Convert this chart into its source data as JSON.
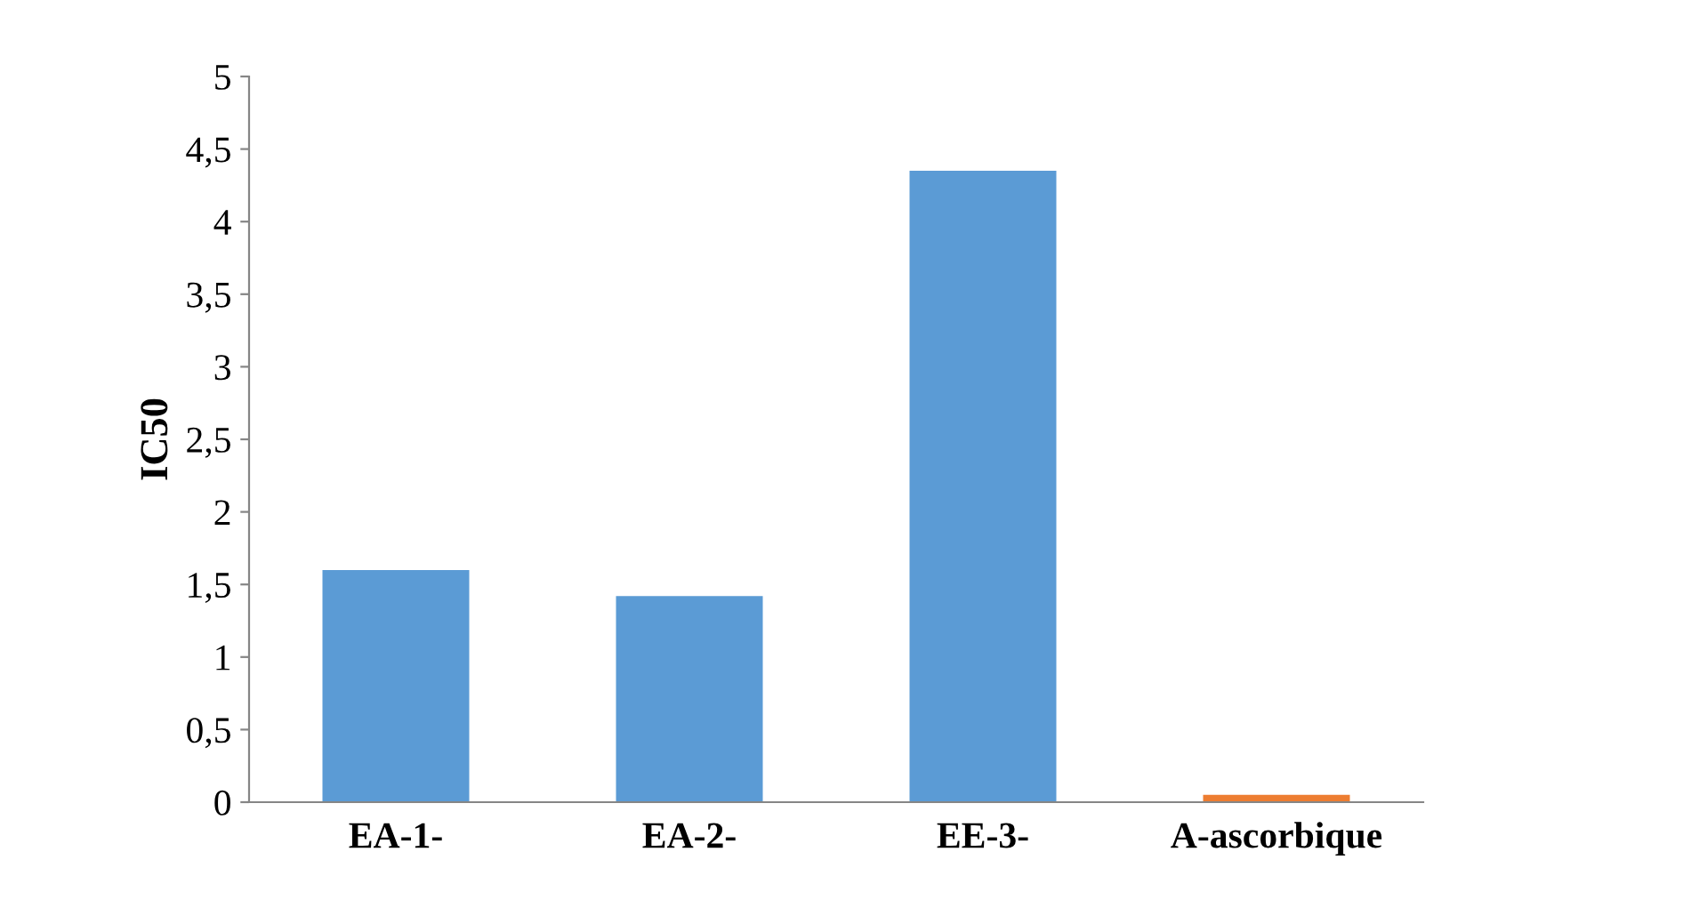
{
  "chart_data": {
    "type": "bar",
    "ylabel": "IC50",
    "categories": [
      "EA-1-",
      "EA-2-",
      "EE-3-",
      "A-ascorbique"
    ],
    "values": [
      1.6,
      1.42,
      4.35,
      0.05
    ],
    "colors": [
      "#5b9bd5",
      "#5b9bd5",
      "#5b9bd5",
      "#ed7d31"
    ],
    "ylim": [
      0,
      5
    ],
    "yticks": [
      0,
      {
        "value": 0.5,
        "label": "0,5"
      },
      1,
      {
        "value": 1.5,
        "label": "1,5"
      },
      2,
      {
        "value": 2.5,
        "label": "2,5"
      },
      3,
      {
        "value": 3.5,
        "label": "3,5"
      },
      4,
      {
        "value": 4.5,
        "label": "4,5"
      },
      5
    ],
    "grid": false,
    "legend": false
  }
}
